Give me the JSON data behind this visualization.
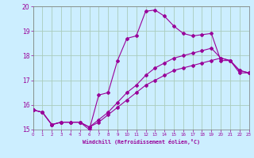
{
  "xlabel": "Windchill (Refroidissement éolien,°C)",
  "background_color": "#cceeff",
  "grid_color": "#aaccbb",
  "line_color": "#990099",
  "xlim": [
    0,
    23
  ],
  "ylim": [
    15,
    20
  ],
  "xticks": [
    0,
    1,
    2,
    3,
    4,
    5,
    6,
    7,
    8,
    9,
    10,
    11,
    12,
    13,
    14,
    15,
    16,
    17,
    18,
    19,
    20,
    21,
    22,
    23
  ],
  "yticks": [
    15,
    16,
    17,
    18,
    19,
    20
  ],
  "series": [
    [
      15.8,
      15.7,
      15.2,
      15.3,
      15.3,
      15.3,
      15.0,
      16.4,
      16.5,
      17.8,
      18.7,
      18.8,
      19.8,
      19.85,
      19.6,
      19.2,
      18.9,
      18.8,
      18.85,
      18.9,
      17.8,
      17.8,
      17.3,
      17.3
    ],
    [
      15.8,
      15.7,
      15.2,
      15.3,
      15.3,
      15.3,
      15.1,
      15.3,
      15.6,
      15.9,
      16.2,
      16.5,
      16.8,
      17.0,
      17.2,
      17.4,
      17.5,
      17.6,
      17.7,
      17.8,
      17.9,
      17.8,
      17.4,
      17.3
    ],
    [
      15.8,
      15.7,
      15.2,
      15.3,
      15.3,
      15.3,
      15.1,
      15.4,
      15.7,
      16.1,
      16.5,
      16.8,
      17.2,
      17.5,
      17.7,
      17.9,
      18.0,
      18.1,
      18.2,
      18.3,
      17.9,
      17.8,
      17.4,
      17.3
    ]
  ]
}
